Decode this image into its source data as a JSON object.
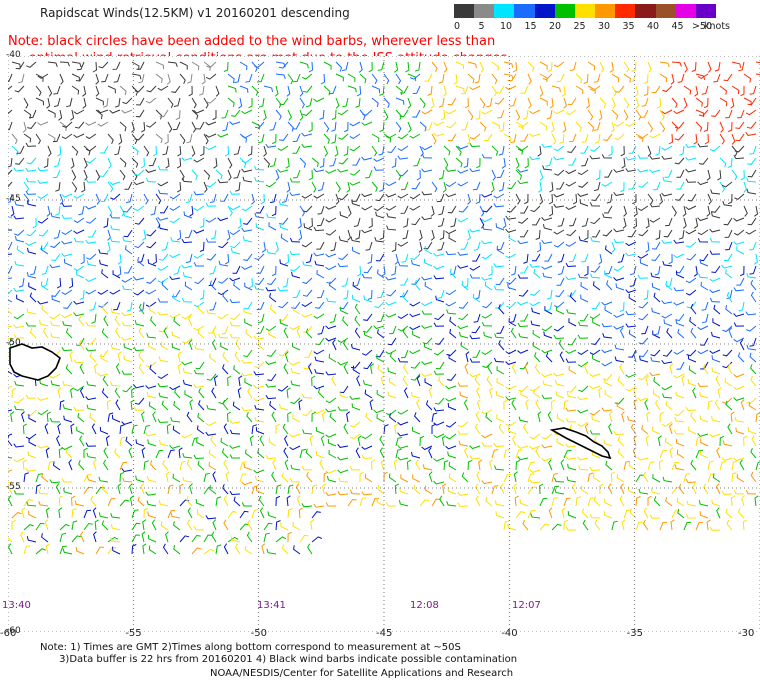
{
  "header": {
    "title": "Rapidscat Winds(12.5KM) v1 20160201 descending",
    "note": "Note: black circles have been added to the wind barbs, wherever less than\n     optimal wind retrieval conditions are met due to the ISS attitude changes."
  },
  "color_scale": {
    "labels": [
      "0",
      "5",
      "10",
      "15",
      "20",
      "25",
      "30",
      "35",
      "40",
      "45",
      ">50"
    ],
    "unit": "knots",
    "colors": [
      "#3a3a3a",
      "#8a8a8a",
      "#00e5ff",
      "#1a6cff",
      "#0014c8",
      "#00c000",
      "#ffe000",
      "#ff9800",
      "#ff2a00",
      "#8b1a1a",
      "#9a5028",
      "#e600e6",
      "#6a00c8"
    ]
  },
  "map": {
    "latitudes": [
      "-40",
      "-45",
      "-50",
      "-55",
      "-60"
    ],
    "longitudes": [
      "-60",
      "-55",
      "-50",
      "-45",
      "-40",
      "-35",
      "-30"
    ],
    "pass_times": [
      "13:40",
      "13:41",
      "12:08",
      "12:07"
    ]
  },
  "footer": {
    "notes": "Note: 1) Times are GMT 2)Times along bottom correspond to measurement at ~50S\n      3)Data buffer is 22 hrs from 20160201 4) Black wind barbs indicate possible contamination",
    "credit": "NOAA/NESDIS/Center for Satellite Applications and Research"
  }
}
